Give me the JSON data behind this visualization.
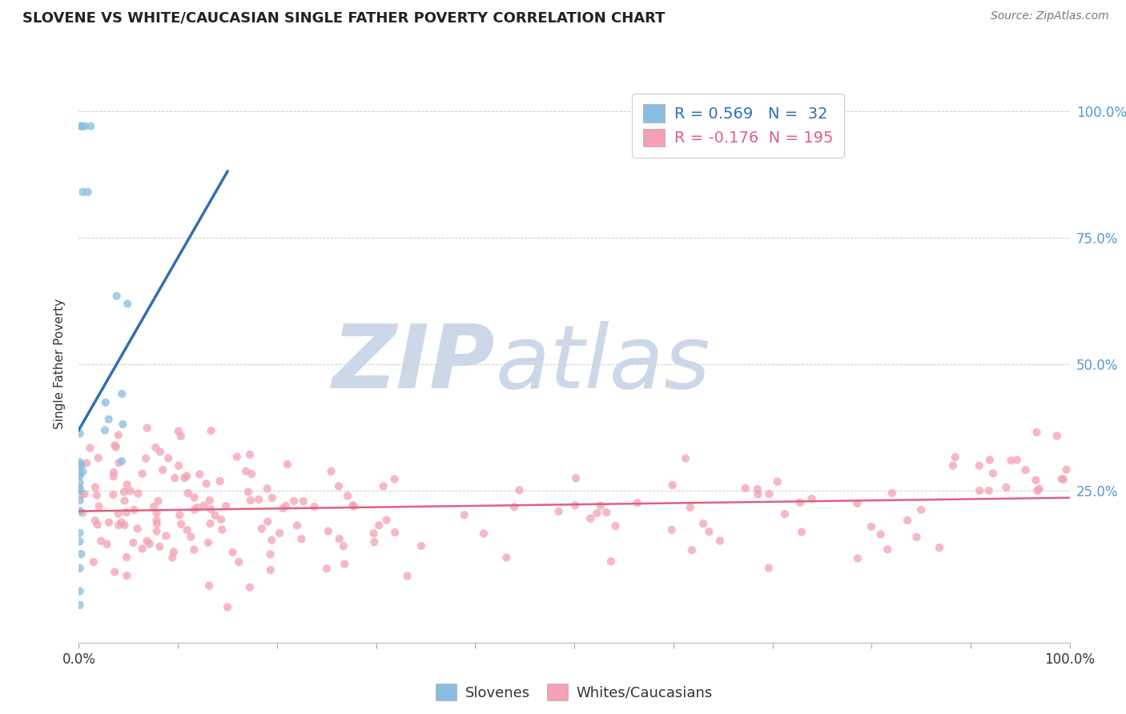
{
  "title": "SLOVENE VS WHITE/CAUCASIAN SINGLE FATHER POVERTY CORRELATION CHART",
  "source": "Source: ZipAtlas.com",
  "ylabel": "Single Father Poverty",
  "legend_slovene_label": "Slovenes",
  "legend_white_label": "Whites/Caucasians",
  "slovene_color": "#89bde0",
  "white_color": "#f4a0b5",
  "regression_slovene_color": "#3070b0",
  "regression_white_color": "#e06080",
  "background_color": "#ffffff",
  "grid_color": "#cccccc",
  "watermark_zip": "ZIP",
  "watermark_atlas": "atlas",
  "watermark_color": "#ccd8e8",
  "slovene_R": 0.569,
  "slovene_N": 32,
  "white_R": -0.176,
  "white_N": 195,
  "legend_text_color": "#3070b0",
  "legend_N_color": "#3070b0",
  "title_color": "#222222",
  "source_color": "#777777",
  "tick_color_right": "#5599cc",
  "xmin": 0.0,
  "xmax": 1.0,
  "ymin": 0.0,
  "ymax": 1.0
}
